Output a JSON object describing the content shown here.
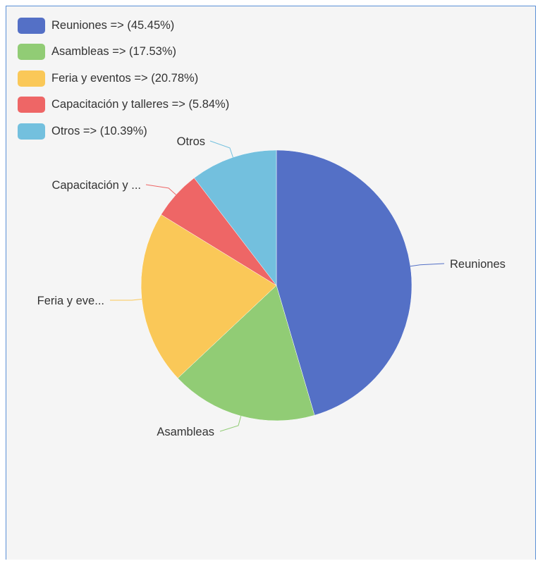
{
  "chart_data": {
    "type": "pie",
    "title": "",
    "legend_position": "top-left",
    "slices": [
      {
        "name": "Reuniones",
        "value": 45.45,
        "legend_label": "Reuniones => (45.45%)",
        "slice_label": "Reuniones",
        "color": "#5470c6"
      },
      {
        "name": "Asambleas",
        "value": 17.53,
        "legend_label": "Asambleas => (17.53%)",
        "slice_label": "Asambleas",
        "color": "#91cc75"
      },
      {
        "name": "Feria y eventos",
        "value": 20.78,
        "legend_label": "Feria y eventos => (20.78%)",
        "slice_label": "Feria y eve...",
        "color": "#fac858"
      },
      {
        "name": "Capacitación y talleres",
        "value": 5.84,
        "legend_label": "Capacitación y talleres => (5.84%)",
        "slice_label": "Capacitación y ...",
        "color": "#ee6666"
      },
      {
        "name": "Otros",
        "value": 10.39,
        "legend_label": "Otros => (10.39%)",
        "slice_label": "Otros",
        "color": "#73c0de"
      }
    ]
  }
}
